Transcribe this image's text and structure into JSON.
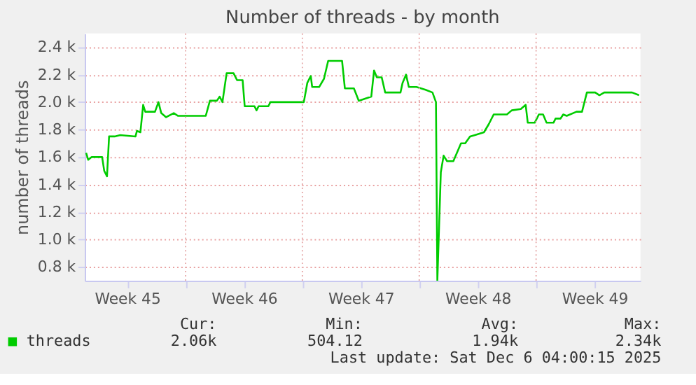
{
  "chart_data": {
    "type": "line",
    "title": "Number of threads - by month",
    "ylabel": "number of threads",
    "xlim": [
      "2025-11-02T23:00",
      "2025-12-06T06:00"
    ],
    "ylim": [
      700,
      2500
    ],
    "xticks": [
      {
        "value": "2025-11-05T12:00",
        "label": "Week 45"
      },
      {
        "value": "2025-11-09T00:00",
        "label": null
      },
      {
        "value": "2025-11-12T12:00",
        "label": "Week 46"
      },
      {
        "value": "2025-11-16T00:00",
        "label": null
      },
      {
        "value": "2025-11-19T12:00",
        "label": "Week 47"
      },
      {
        "value": "2025-11-23T00:00",
        "label": null
      },
      {
        "value": "2025-11-26T12:00",
        "label": "Week 48"
      },
      {
        "value": "2025-11-30T00:00",
        "label": null
      },
      {
        "value": "2025-12-03T12:00",
        "label": "Week 49"
      }
    ],
    "yticks": [
      {
        "value": 800,
        "label": "0.8 k"
      },
      {
        "value": 1000,
        "label": "1.0 k"
      },
      {
        "value": 1200,
        "label": "1.2 k"
      },
      {
        "value": 1400,
        "label": "1.4 k"
      },
      {
        "value": 1600,
        "label": "1.6 k"
      },
      {
        "value": 1800,
        "label": "1.8 k"
      },
      {
        "value": 2000,
        "label": "2.0 k"
      },
      {
        "value": 2200,
        "label": "2.2 k"
      },
      {
        "value": 2400,
        "label": "2.4 k"
      }
    ],
    "grid": true,
    "legend": "bottom",
    "marker": "none",
    "line_style": "solid",
    "series": [
      {
        "name": "threads",
        "color": "#00cc00",
        "x": [
          "2025-11-03T01:00",
          "2025-11-03T04:00",
          "2025-11-03T09:00",
          "2025-11-04T00:00",
          "2025-11-04T03:00",
          "2025-11-04T07:00",
          "2025-11-04T10:00",
          "2025-11-04T18:00",
          "2025-11-05T02:00",
          "2025-11-06T00:00",
          "2025-11-06T02:00",
          "2025-11-06T07:00",
          "2025-11-06T11:00",
          "2025-11-06T14:00",
          "2025-11-07T04:00",
          "2025-11-07T09:00",
          "2025-11-07T13:00",
          "2025-11-07T20:00",
          "2025-11-08T07:00",
          "2025-11-08T13:00",
          "2025-11-10T05:00",
          "2025-11-10T11:00",
          "2025-11-10T21:00",
          "2025-11-11T01:00",
          "2025-11-11T05:00",
          "2025-11-11T11:00",
          "2025-11-11T21:00",
          "2025-11-12T02:00",
          "2025-11-12T10:00",
          "2025-11-12T13:00",
          "2025-11-13T03:00",
          "2025-11-13T06:00",
          "2025-11-13T09:00",
          "2025-11-13T23:00",
          "2025-11-14T02:00",
          "2025-11-16T02:00",
          "2025-11-16T07:00",
          "2025-11-16T12:00",
          "2025-11-16T14:00",
          "2025-11-17T00:00",
          "2025-11-17T07:00",
          "2025-11-17T13:00",
          "2025-11-18T03:00",
          "2025-11-18T09:00",
          "2025-11-18T13:00",
          "2025-11-19T02:00",
          "2025-11-19T09:00",
          "2025-11-20T03:00",
          "2025-11-20T07:00",
          "2025-11-20T11:00",
          "2025-11-20T18:00",
          "2025-11-20T23:00",
          "2025-11-21T21:00",
          "2025-11-22T00:00",
          "2025-11-22T05:00",
          "2025-11-22T09:00",
          "2025-11-22T20:00",
          "2025-11-23T09:00",
          "2025-11-23T19:00",
          "2025-11-24T00:00",
          "2025-11-24T02:00",
          "2025-11-24T07:00",
          "2025-11-24T11:00",
          "2025-11-24T16:00",
          "2025-11-25T01:00",
          "2025-11-25T12:00",
          "2025-11-25T18:00",
          "2025-11-26T01:00",
          "2025-11-26T08:00",
          "2025-11-26T21:00",
          "2025-11-27T04:00",
          "2025-11-27T11:00",
          "2025-11-28T06:00",
          "2025-11-28T13:00",
          "2025-11-29T02:00",
          "2025-11-29T09:00",
          "2025-11-29T12:00",
          "2025-11-29T22:00",
          "2025-11-30T04:00",
          "2025-11-30T10:00",
          "2025-11-30T15:00",
          "2025-12-01T01:00",
          "2025-12-01T04:00",
          "2025-12-01T11:00",
          "2025-12-01T15:00",
          "2025-12-01T20:00",
          "2025-12-02T10:00",
          "2025-12-02T18:00",
          "2025-12-03T01:00",
          "2025-12-03T13:00",
          "2025-12-03T19:00",
          "2025-12-04T02:00",
          "2025-12-05T18:00",
          "2025-12-06T04:00"
        ],
        "values": [
          1630,
          1580,
          1600,
          1600,
          1500,
          1460,
          1750,
          1750,
          1760,
          1750,
          1790,
          1780,
          1980,
          1930,
          1930,
          2000,
          1920,
          1890,
          1920,
          1900,
          1900,
          2010,
          2010,
          2040,
          2000,
          2210,
          2210,
          2160,
          2160,
          1970,
          1970,
          1940,
          1970,
          1970,
          2000,
          2000,
          2140,
          2190,
          2110,
          2110,
          2170,
          2300,
          2300,
          2300,
          2100,
          2100,
          2010,
          2040,
          2230,
          2180,
          2180,
          2070,
          2070,
          2140,
          2200,
          2110,
          2110,
          2090,
          2070,
          2000,
          700,
          1490,
          1610,
          1570,
          1570,
          1700,
          1700,
          1750,
          1760,
          1780,
          1840,
          1910,
          1910,
          1940,
          1950,
          1980,
          1850,
          1850,
          1910,
          1910,
          1850,
          1850,
          1880,
          1880,
          1910,
          1900,
          1930,
          1930,
          2070,
          2070,
          2050,
          2070,
          2070,
          2050
        ]
      }
    ],
    "annotations": [
      "Cur:",
      "Min:",
      "Avg:",
      "Max:",
      "2.06k",
      "504.12",
      "1.94k",
      "2.34k",
      "Last update: Sat Dec  6 04:00:15 2025"
    ]
  }
}
